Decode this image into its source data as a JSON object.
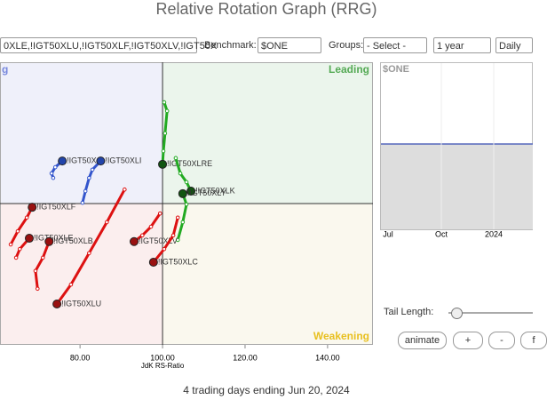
{
  "header": {
    "title": "Relative Rotation Graph (RRG)"
  },
  "toolbar": {
    "symbols": "0XLE,!IGT50XLU,!IGT50XLF,!IGT50XLV,!IGT50X",
    "benchmark_label": "Benchmark:",
    "benchmark": "$ONE",
    "groups_label": "Groups:",
    "groups": "- Select -",
    "period": "1 year",
    "interval": "Daily"
  },
  "chart_data": {
    "type": "scatter",
    "x_label": "JdK RS-Ratio",
    "quadrants": {
      "improving": "g",
      "leading": "Leading",
      "weakening": "Weakening"
    },
    "center": 100,
    "xlim": [
      60.6,
      151
    ],
    "ylim": [
      65.8,
      134.2
    ],
    "xticks": [
      {
        "value": 80,
        "label": "80.00"
      },
      {
        "value": 100,
        "label": "100.00"
      },
      {
        "value": 120,
        "label": "120.00"
      },
      {
        "value": 140,
        "label": "140.00"
      }
    ],
    "series": [
      {
        "name": "!IGT50XLI",
        "color": "#3355cc",
        "x": [
          80.6,
          81.3,
          82.2,
          83.0,
          85.0
        ],
        "values": [
          100.2,
          103.0,
          106.2,
          108.2,
          110.3
        ]
      },
      {
        "name": "!IGT50X",
        "color": "#3355cc",
        "x": [
          73.5,
          73.1,
          74.0,
          75.7
        ],
        "values": [
          106.2,
          107.3,
          108.8,
          110.3
        ]
      },
      {
        "name": "!IGT50XLRE",
        "color": "#22aa22",
        "x": [
          100.4,
          101.1,
          100.6,
          100.2,
          100.0
        ],
        "values": [
          124.5,
          122.4,
          117.0,
          112.7,
          109.5
        ]
      },
      {
        "name": "!IGT50XLK",
        "color": "#22aa22",
        "x": [
          103.2,
          104.3,
          105.8,
          106.9
        ],
        "values": [
          111.0,
          107.3,
          105.2,
          103.0
        ]
      },
      {
        "name": "!IGT50XLY",
        "color": "#22aa22",
        "x": [
          103.7,
          104.9,
          105.8,
          104.9
        ],
        "values": [
          91.2,
          95.5,
          99.8,
          102.4
        ]
      },
      {
        "name": "!IGT50XLF",
        "color": "#dd1111",
        "x": [
          63.2,
          64.9,
          67.1,
          68.4
        ],
        "values": [
          90.1,
          93.3,
          96.6,
          99.1
        ]
      },
      {
        "name": "!IGT50XLE",
        "color": "#dd1111",
        "x": [
          64.5,
          65.4,
          67.7
        ],
        "values": [
          86.9,
          89.0,
          91.6
        ]
      },
      {
        "name": "!IGT50XLB",
        "color": "#dd1111",
        "x": [
          69.7,
          69.2,
          71.0,
          72.5
        ],
        "values": [
          79.4,
          83.7,
          86.9,
          90.8
        ]
      },
      {
        "name": "!IGT50XLU",
        "color": "#dd1111",
        "x": [
          90.8,
          86.5,
          82.2,
          77.8,
          74.4
        ],
        "values": [
          103.4,
          95.5,
          88.0,
          80.4,
          75.7
        ]
      },
      {
        "name": "!IGT50XLV",
        "color": "#dd1111",
        "x": [
          99.4,
          97.2,
          95.1,
          93.1
        ],
        "values": [
          97.6,
          94.4,
          92.3,
          90.8
        ]
      },
      {
        "name": "!IGT50XLC",
        "color": "#dd1111",
        "x": [
          103.7,
          102.6,
          100.4,
          97.8
        ],
        "values": [
          96.6,
          92.3,
          89.0,
          85.8
        ]
      }
    ]
  },
  "benchmark_panel": {
    "label": "$ONE",
    "x_labels": [
      "Jul",
      "Oct",
      "2024"
    ]
  },
  "controls": {
    "tail_length_label": "Tail Length:",
    "buttons": [
      "animate",
      "+",
      "-",
      "f"
    ]
  },
  "footer": "4 trading days ending Jun 20, 2024"
}
